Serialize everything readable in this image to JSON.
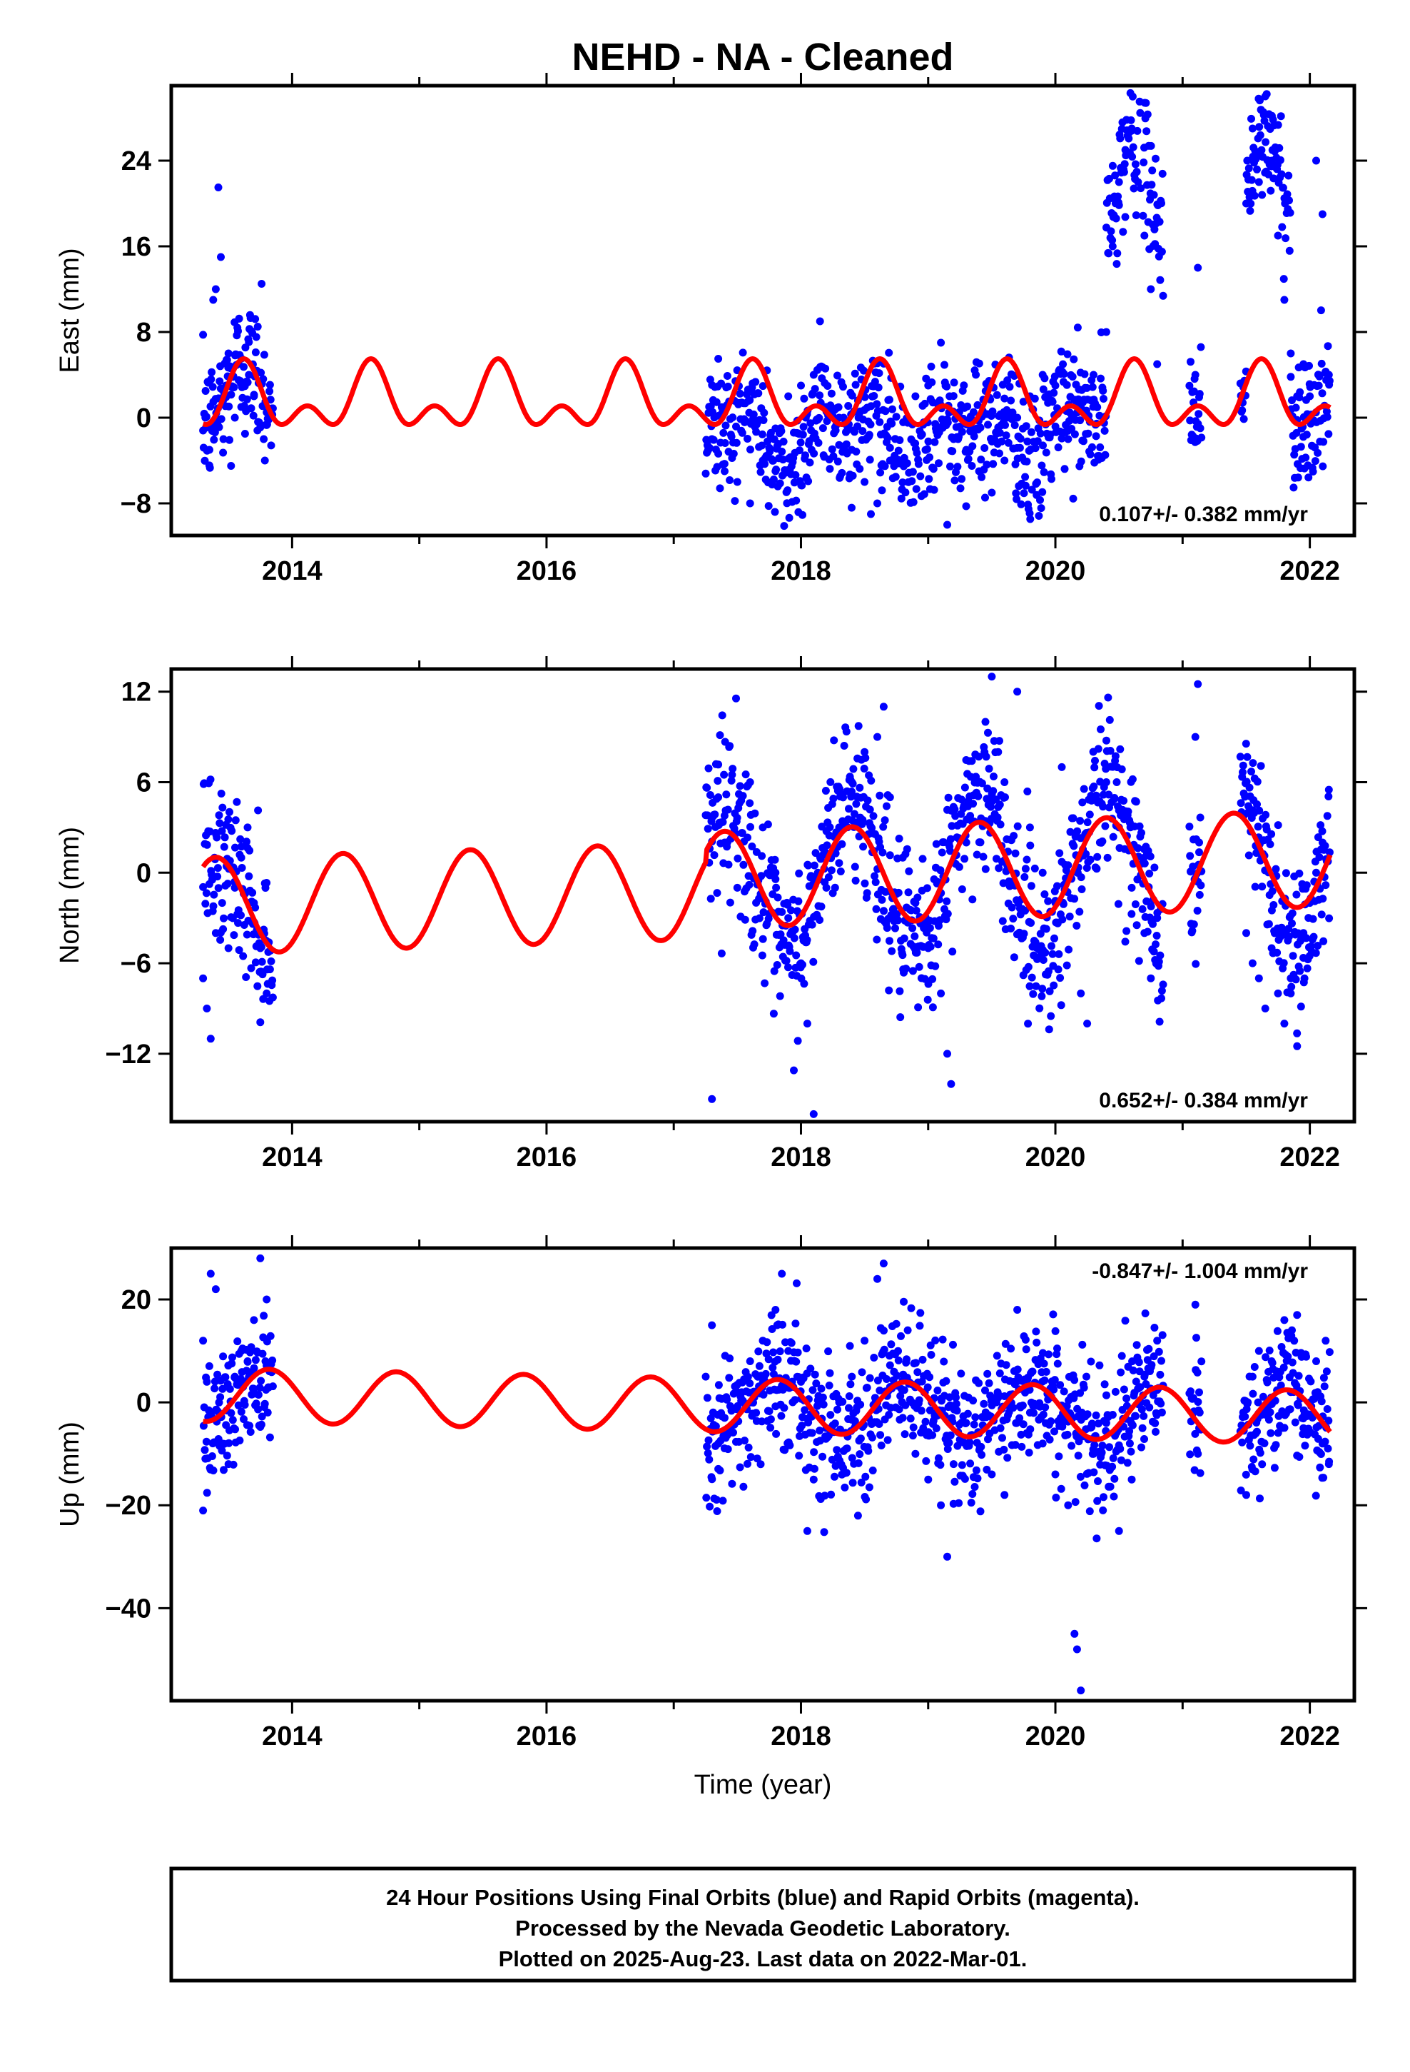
{
  "title": "NEHD  - NA - Cleaned",
  "xlabel": "Time (year)",
  "footer": {
    "lines": [
      "24 Hour Positions Using Final Orbits (blue) and Rapid Orbits (magenta).",
      "Processed by the Nevada Geodetic Laboratory.",
      "Plotted on 2025-Aug-23. Last data on 2022-Mar-01."
    ]
  },
  "colors": {
    "data_points": "#0000ff",
    "model_curve": "#ff0000",
    "frame": "#000000"
  },
  "chart_data": [
    {
      "type": "scatter",
      "component": "east",
      "ylabel": "East (mm)",
      "rate_label": "0.107+/- 0.382 mm/yr",
      "rate_position": "bottom-right",
      "xlim": [
        2013.05,
        2022.35
      ],
      "ylim": [
        -11,
        31
      ],
      "xticks": [
        2014,
        2016,
        2018,
        2020,
        2022
      ],
      "xtick_labels": [
        "2014",
        "2016",
        "2018",
        "2020",
        "2022"
      ],
      "yticks": [
        -8,
        0,
        8,
        16,
        24
      ],
      "ytick_labels": [
        "−8",
        "0",
        "8",
        "16",
        "24"
      ],
      "grid": false,
      "data_gaps": [
        [
          2013.85,
          2017.25
        ],
        [
          2020.85,
          2021.05
        ],
        [
          2021.15,
          2021.45
        ]
      ],
      "points": [
        [
          2013.3,
          -1.2
        ],
        [
          2013.32,
          2.5
        ],
        [
          2013.35,
          -3
        ],
        [
          2013.38,
          11
        ],
        [
          2013.4,
          12
        ],
        [
          2013.42,
          21.5
        ],
        [
          2013.44,
          15
        ],
        [
          2013.46,
          -2
        ],
        [
          2013.48,
          3
        ],
        [
          2013.5,
          6
        ],
        [
          2013.52,
          -4.5
        ],
        [
          2013.55,
          0
        ],
        [
          2013.58,
          3.5
        ],
        [
          2013.6,
          1
        ],
        [
          2013.63,
          -1.5
        ],
        [
          2013.66,
          4
        ],
        [
          2013.7,
          2
        ],
        [
          2013.73,
          8.5
        ],
        [
          2013.76,
          12.5
        ],
        [
          2013.8,
          0.5
        ],
        [
          2017.3,
          -2
        ],
        [
          2017.35,
          5.5
        ],
        [
          2017.4,
          -5
        ],
        [
          2017.5,
          -6
        ],
        [
          2017.6,
          -8
        ],
        [
          2017.7,
          -4
        ],
        [
          2017.8,
          -1
        ],
        [
          2017.9,
          2
        ],
        [
          2018.0,
          3
        ],
        [
          2018.1,
          4
        ],
        [
          2018.15,
          9
        ],
        [
          2018.2,
          1
        ],
        [
          2018.3,
          0
        ],
        [
          2018.4,
          -3
        ],
        [
          2018.5,
          -6
        ],
        [
          2018.55,
          -9
        ],
        [
          2018.6,
          -8
        ],
        [
          2018.7,
          -4
        ],
        [
          2018.8,
          1
        ],
        [
          2018.9,
          2
        ],
        [
          2019.0,
          3
        ],
        [
          2019.1,
          7
        ],
        [
          2019.15,
          -10
        ],
        [
          2019.2,
          -2
        ],
        [
          2019.3,
          -3
        ],
        [
          2019.4,
          -5
        ],
        [
          2019.5,
          -7
        ],
        [
          2019.6,
          -4
        ],
        [
          2019.7,
          0
        ],
        [
          2019.8,
          2
        ],
        [
          2019.9,
          4
        ],
        [
          2020.0,
          3
        ],
        [
          2020.1,
          -2
        ],
        [
          2020.2,
          1
        ],
        [
          2020.3,
          4
        ],
        [
          2020.4,
          8
        ],
        [
          2020.45,
          16
        ],
        [
          2020.5,
          22
        ],
        [
          2020.55,
          25
        ],
        [
          2020.6,
          27
        ],
        [
          2020.65,
          22
        ],
        [
          2020.7,
          17
        ],
        [
          2020.75,
          12
        ],
        [
          2020.8,
          5
        ],
        [
          2021.1,
          4
        ],
        [
          2021.12,
          14
        ],
        [
          2021.5,
          20
        ],
        [
          2021.55,
          27
        ],
        [
          2021.6,
          22
        ],
        [
          2021.65,
          30
        ],
        [
          2021.7,
          24
        ],
        [
          2021.75,
          17
        ],
        [
          2021.8,
          11
        ],
        [
          2021.85,
          6
        ],
        [
          2021.9,
          2
        ],
        [
          2021.95,
          5
        ],
        [
          2022.0,
          2
        ],
        [
          2022.05,
          24
        ],
        [
          2022.1,
          19
        ],
        [
          2022.15,
          4
        ]
      ],
      "model": {
        "type": "seasonal",
        "offset": 1.5,
        "amp1": 2.5,
        "phase1": 0.95,
        "amp2": 1.8,
        "phase2": 0.35
      }
    },
    {
      "type": "scatter",
      "component": "north",
      "ylabel": "North (mm)",
      "rate_label": "0.652+/- 0.384 mm/yr",
      "rate_position": "bottom-right",
      "xlim": [
        2013.05,
        2022.35
      ],
      "ylim": [
        -16.5,
        13.5
      ],
      "xticks": [
        2014,
        2016,
        2018,
        2020,
        2022
      ],
      "xtick_labels": [
        "2014",
        "2016",
        "2018",
        "2020",
        "2022"
      ],
      "yticks": [
        -12,
        -6,
        0,
        6,
        12
      ],
      "ytick_labels": [
        "−12",
        "−6",
        "0",
        "6",
        "12"
      ],
      "grid": false,
      "data_gaps": [
        [
          2013.85,
          2017.25
        ],
        [
          2020.85,
          2021.05
        ],
        [
          2021.15,
          2021.45
        ]
      ],
      "points": [
        [
          2013.3,
          -7
        ],
        [
          2013.33,
          -9
        ],
        [
          2013.36,
          -11
        ],
        [
          2013.4,
          -4
        ],
        [
          2013.45,
          -2
        ],
        [
          2013.5,
          -5
        ],
        [
          2013.55,
          -1
        ],
        [
          2013.6,
          1
        ],
        [
          2013.65,
          3
        ],
        [
          2013.7,
          -2
        ],
        [
          2013.75,
          -5
        ],
        [
          2013.8,
          -8
        ],
        [
          2017.3,
          -15
        ],
        [
          2017.35,
          5
        ],
        [
          2017.4,
          2
        ],
        [
          2017.5,
          -1
        ],
        [
          2017.6,
          6
        ],
        [
          2017.7,
          3
        ],
        [
          2017.8,
          0
        ],
        [
          2017.9,
          -3
        ],
        [
          2018.0,
          -6
        ],
        [
          2018.05,
          -10
        ],
        [
          2018.1,
          -16
        ],
        [
          2018.2,
          -1
        ],
        [
          2018.3,
          3
        ],
        [
          2018.4,
          6
        ],
        [
          2018.5,
          8
        ],
        [
          2018.6,
          9
        ],
        [
          2018.65,
          11
        ],
        [
          2018.7,
          5
        ],
        [
          2018.8,
          1
        ],
        [
          2018.9,
          -2
        ],
        [
          2019.0,
          -5
        ],
        [
          2019.1,
          -8
        ],
        [
          2019.15,
          -12
        ],
        [
          2019.18,
          -14
        ],
        [
          2019.3,
          2
        ],
        [
          2019.4,
          6
        ],
        [
          2019.45,
          10
        ],
        [
          2019.5,
          13
        ],
        [
          2019.55,
          8
        ],
        [
          2019.6,
          6
        ],
        [
          2019.7,
          12
        ],
        [
          2019.8,
          3
        ],
        [
          2019.9,
          0
        ],
        [
          2020.0,
          -2
        ],
        [
          2020.05,
          7
        ],
        [
          2020.2,
          -8
        ],
        [
          2020.25,
          -10
        ],
        [
          2020.35,
          2
        ],
        [
          2020.4,
          6
        ],
        [
          2020.5,
          3
        ],
        [
          2020.6,
          -1
        ],
        [
          2020.7,
          -4
        ],
        [
          2020.75,
          -7
        ],
        [
          2020.8,
          -3
        ],
        [
          2021.1,
          9
        ],
        [
          2021.12,
          12.5
        ],
        [
          2021.13,
          2
        ],
        [
          2021.5,
          -4
        ],
        [
          2021.55,
          -6
        ],
        [
          2021.6,
          -7
        ],
        [
          2021.65,
          -9
        ],
        [
          2021.7,
          -5
        ],
        [
          2021.75,
          -8
        ],
        [
          2021.8,
          -10
        ],
        [
          2021.85,
          -7
        ],
        [
          2021.9,
          -11.5
        ],
        [
          2021.95,
          -4
        ],
        [
          2022.0,
          -2
        ],
        [
          2022.05,
          0
        ],
        [
          2022.1,
          2
        ],
        [
          2022.15,
          5.5
        ]
      ],
      "model": {
        "type": "seasonal_trend",
        "trend_start": 2017.25,
        "trend_end": 2021.5,
        "amp1": 3.5,
        "phase1": 0.37
      }
    },
    {
      "type": "scatter",
      "component": "up",
      "ylabel": "Up (mm)",
      "rate_label": "-0.847+/- 1.004 mm/yr",
      "rate_position": "top-right",
      "xlim": [
        2013.05,
        2022.35
      ],
      "ylim": [
        -58,
        30
      ],
      "xticks": [
        2014,
        2016,
        2018,
        2020,
        2022
      ],
      "xtick_labels": [
        "2014",
        "2016",
        "2018",
        "2020",
        "2022"
      ],
      "yticks": [
        -40,
        -20,
        0,
        20
      ],
      "ytick_labels": [
        "−40",
        "−20",
        "0",
        "20"
      ],
      "grid": false,
      "data_gaps": [
        [
          2013.85,
          2017.25
        ],
        [
          2020.85,
          2021.05
        ],
        [
          2021.15,
          2021.45
        ]
      ],
      "points": [
        [
          2013.3,
          12
        ],
        [
          2013.33,
          4
        ],
        [
          2013.36,
          25
        ],
        [
          2013.4,
          22
        ],
        [
          2013.45,
          -8
        ],
        [
          2013.5,
          -12
        ],
        [
          2013.55,
          5
        ],
        [
          2013.6,
          10
        ],
        [
          2013.65,
          8
        ],
        [
          2013.7,
          16
        ],
        [
          2013.75,
          28
        ],
        [
          2013.8,
          20
        ],
        [
          2017.3,
          15
        ],
        [
          2017.35,
          -8
        ],
        [
          2017.4,
          -3
        ],
        [
          2017.5,
          2
        ],
        [
          2017.6,
          8
        ],
        [
          2017.7,
          12
        ],
        [
          2017.8,
          18
        ],
        [
          2017.85,
          25
        ],
        [
          2017.9,
          10
        ],
        [
          2018.0,
          4
        ],
        [
          2018.05,
          -25
        ],
        [
          2018.1,
          -15
        ],
        [
          2018.2,
          -5
        ],
        [
          2018.3,
          0
        ],
        [
          2018.4,
          5
        ],
        [
          2018.5,
          12
        ],
        [
          2018.6,
          24
        ],
        [
          2018.65,
          27
        ],
        [
          2018.7,
          3
        ],
        [
          2018.8,
          -3
        ],
        [
          2018.9,
          -10
        ],
        [
          2019.0,
          -15
        ],
        [
          2019.1,
          -20
        ],
        [
          2019.15,
          -30
        ],
        [
          2019.2,
          -12
        ],
        [
          2019.3,
          -8
        ],
        [
          2019.4,
          -6
        ],
        [
          2019.5,
          -14
        ],
        [
          2019.6,
          -18
        ],
        [
          2019.7,
          18
        ],
        [
          2019.8,
          -2
        ],
        [
          2019.9,
          -8
        ],
        [
          2020.0,
          -14
        ],
        [
          2020.1,
          -20
        ],
        [
          2020.15,
          -45
        ],
        [
          2020.17,
          -48
        ],
        [
          2020.2,
          -56
        ],
        [
          2020.3,
          -10
        ],
        [
          2020.4,
          -4
        ],
        [
          2020.5,
          -25
        ],
        [
          2020.6,
          -15
        ],
        [
          2020.7,
          5
        ],
        [
          2020.8,
          12
        ],
        [
          2021.1,
          19
        ],
        [
          2021.12,
          -10
        ],
        [
          2021.13,
          -5
        ],
        [
          2021.5,
          -18
        ],
        [
          2021.55,
          5
        ],
        [
          2021.6,
          10
        ],
        [
          2021.7,
          8
        ],
        [
          2021.8,
          16
        ],
        [
          2021.85,
          2
        ],
        [
          2021.9,
          17
        ],
        [
          2021.95,
          -5
        ],
        [
          2022.0,
          0
        ],
        [
          2022.05,
          8
        ],
        [
          2022.1,
          -8
        ],
        [
          2022.15,
          -12
        ]
      ],
      "model": {
        "type": "seasonal_trend",
        "trend_start": 2013.3,
        "trend_end": 2022.15,
        "amp1": 5.0,
        "phase1": 0.82
      }
    }
  ]
}
